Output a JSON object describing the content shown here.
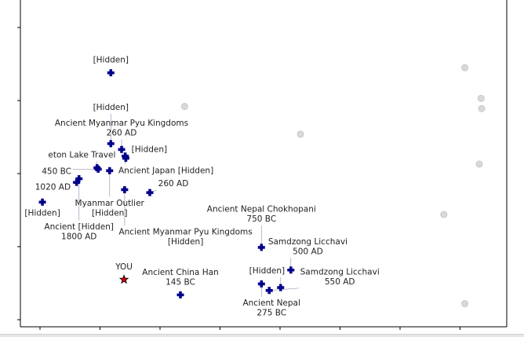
{
  "chart_data": {
    "type": "scatter",
    "title": "",
    "xlabel": "",
    "ylabel": "",
    "xlim": [
      -0.33,
      7.77
    ],
    "ylim": [
      -0.1,
      4.4
    ],
    "x_ticks": [
      0,
      1,
      2,
      3,
      4,
      5,
      6,
      7
    ],
    "y_ticks": [
      0,
      1,
      2,
      3,
      4
    ],
    "grid": false,
    "colors": {
      "site": "#00008b",
      "faded": "#d9d9d9",
      "you": "#d00000"
    },
    "you": {
      "label": "YOU",
      "x": 1.4,
      "y": 0.55
    },
    "faded_points": [
      {
        "x": 7.08,
        "y": 3.45
      },
      {
        "x": 2.41,
        "y": 2.92
      },
      {
        "x": 7.35,
        "y": 3.03
      },
      {
        "x": 7.36,
        "y": 2.89
      },
      {
        "x": 4.34,
        "y": 2.54
      },
      {
        "x": 7.32,
        "y": 2.13
      },
      {
        "x": 6.73,
        "y": 1.44
      },
      {
        "x": 7.08,
        "y": 0.22
      }
    ],
    "sites": [
      {
        "x": 1.18,
        "y": 3.38,
        "lines": [
          "[Hidden]"
        ]
      },
      {
        "x": 1.36,
        "y": 2.33,
        "lines": [
          "Ancient Myanmar Pyu Kingdoms",
          "260 AD"
        ]
      },
      {
        "x": 1.18,
        "y": 2.41,
        "lines": [
          "[Hidden]"
        ]
      },
      {
        "x": 1.42,
        "y": 2.24,
        "lines": [
          "Ancient Japan [Hidden]"
        ]
      },
      {
        "x": 1.43,
        "y": 2.21,
        "lines": [
          "[Hidden]"
        ]
      },
      {
        "x": 0.95,
        "y": 2.08,
        "lines": [
          "eton Lake Travel"
        ]
      },
      {
        "x": 1.16,
        "y": 2.04,
        "lines": [
          "Myanmar Outlier",
          "[Hidden]"
        ]
      },
      {
        "x": 0.97,
        "y": 2.06,
        "lines": [
          "450 BC"
        ]
      },
      {
        "x": 0.65,
        "y": 1.93,
        "lines": [
          "Ancient [Hidden]",
          "1800 AD"
        ]
      },
      {
        "x": 0.61,
        "y": 1.88,
        "lines": [
          "1020 AD"
        ]
      },
      {
        "x": 1.41,
        "y": 1.78,
        "lines": [
          "Ancient Myanmar Pyu Kingdoms",
          "[Hidden]"
        ]
      },
      {
        "x": 1.83,
        "y": 1.74,
        "lines": [
          "260 AD"
        ]
      },
      {
        "x": 0.04,
        "y": 1.61,
        "lines": [
          "[Hidden]"
        ]
      },
      {
        "x": 3.69,
        "y": 0.99,
        "lines": [
          "Ancient Nepal Chokhopani",
          "750 BC"
        ]
      },
      {
        "x": 4.18,
        "y": 0.68,
        "lines": [
          "Samdzong Licchavi",
          "500 AD"
        ]
      },
      {
        "x": 2.34,
        "y": 0.34,
        "lines": [
          "Ancient China Han",
          "145 BC"
        ]
      },
      {
        "x": 3.69,
        "y": 0.49,
        "lines": [
          "Ancient Nepal",
          "275 BC"
        ]
      },
      {
        "x": 3.82,
        "y": 0.4,
        "lines": [
          "Samdzong Licchavi",
          "550 AD"
        ]
      },
      {
        "x": 4.01,
        "y": 0.44,
        "lines": [
          "[Hidden]"
        ]
      }
    ]
  }
}
